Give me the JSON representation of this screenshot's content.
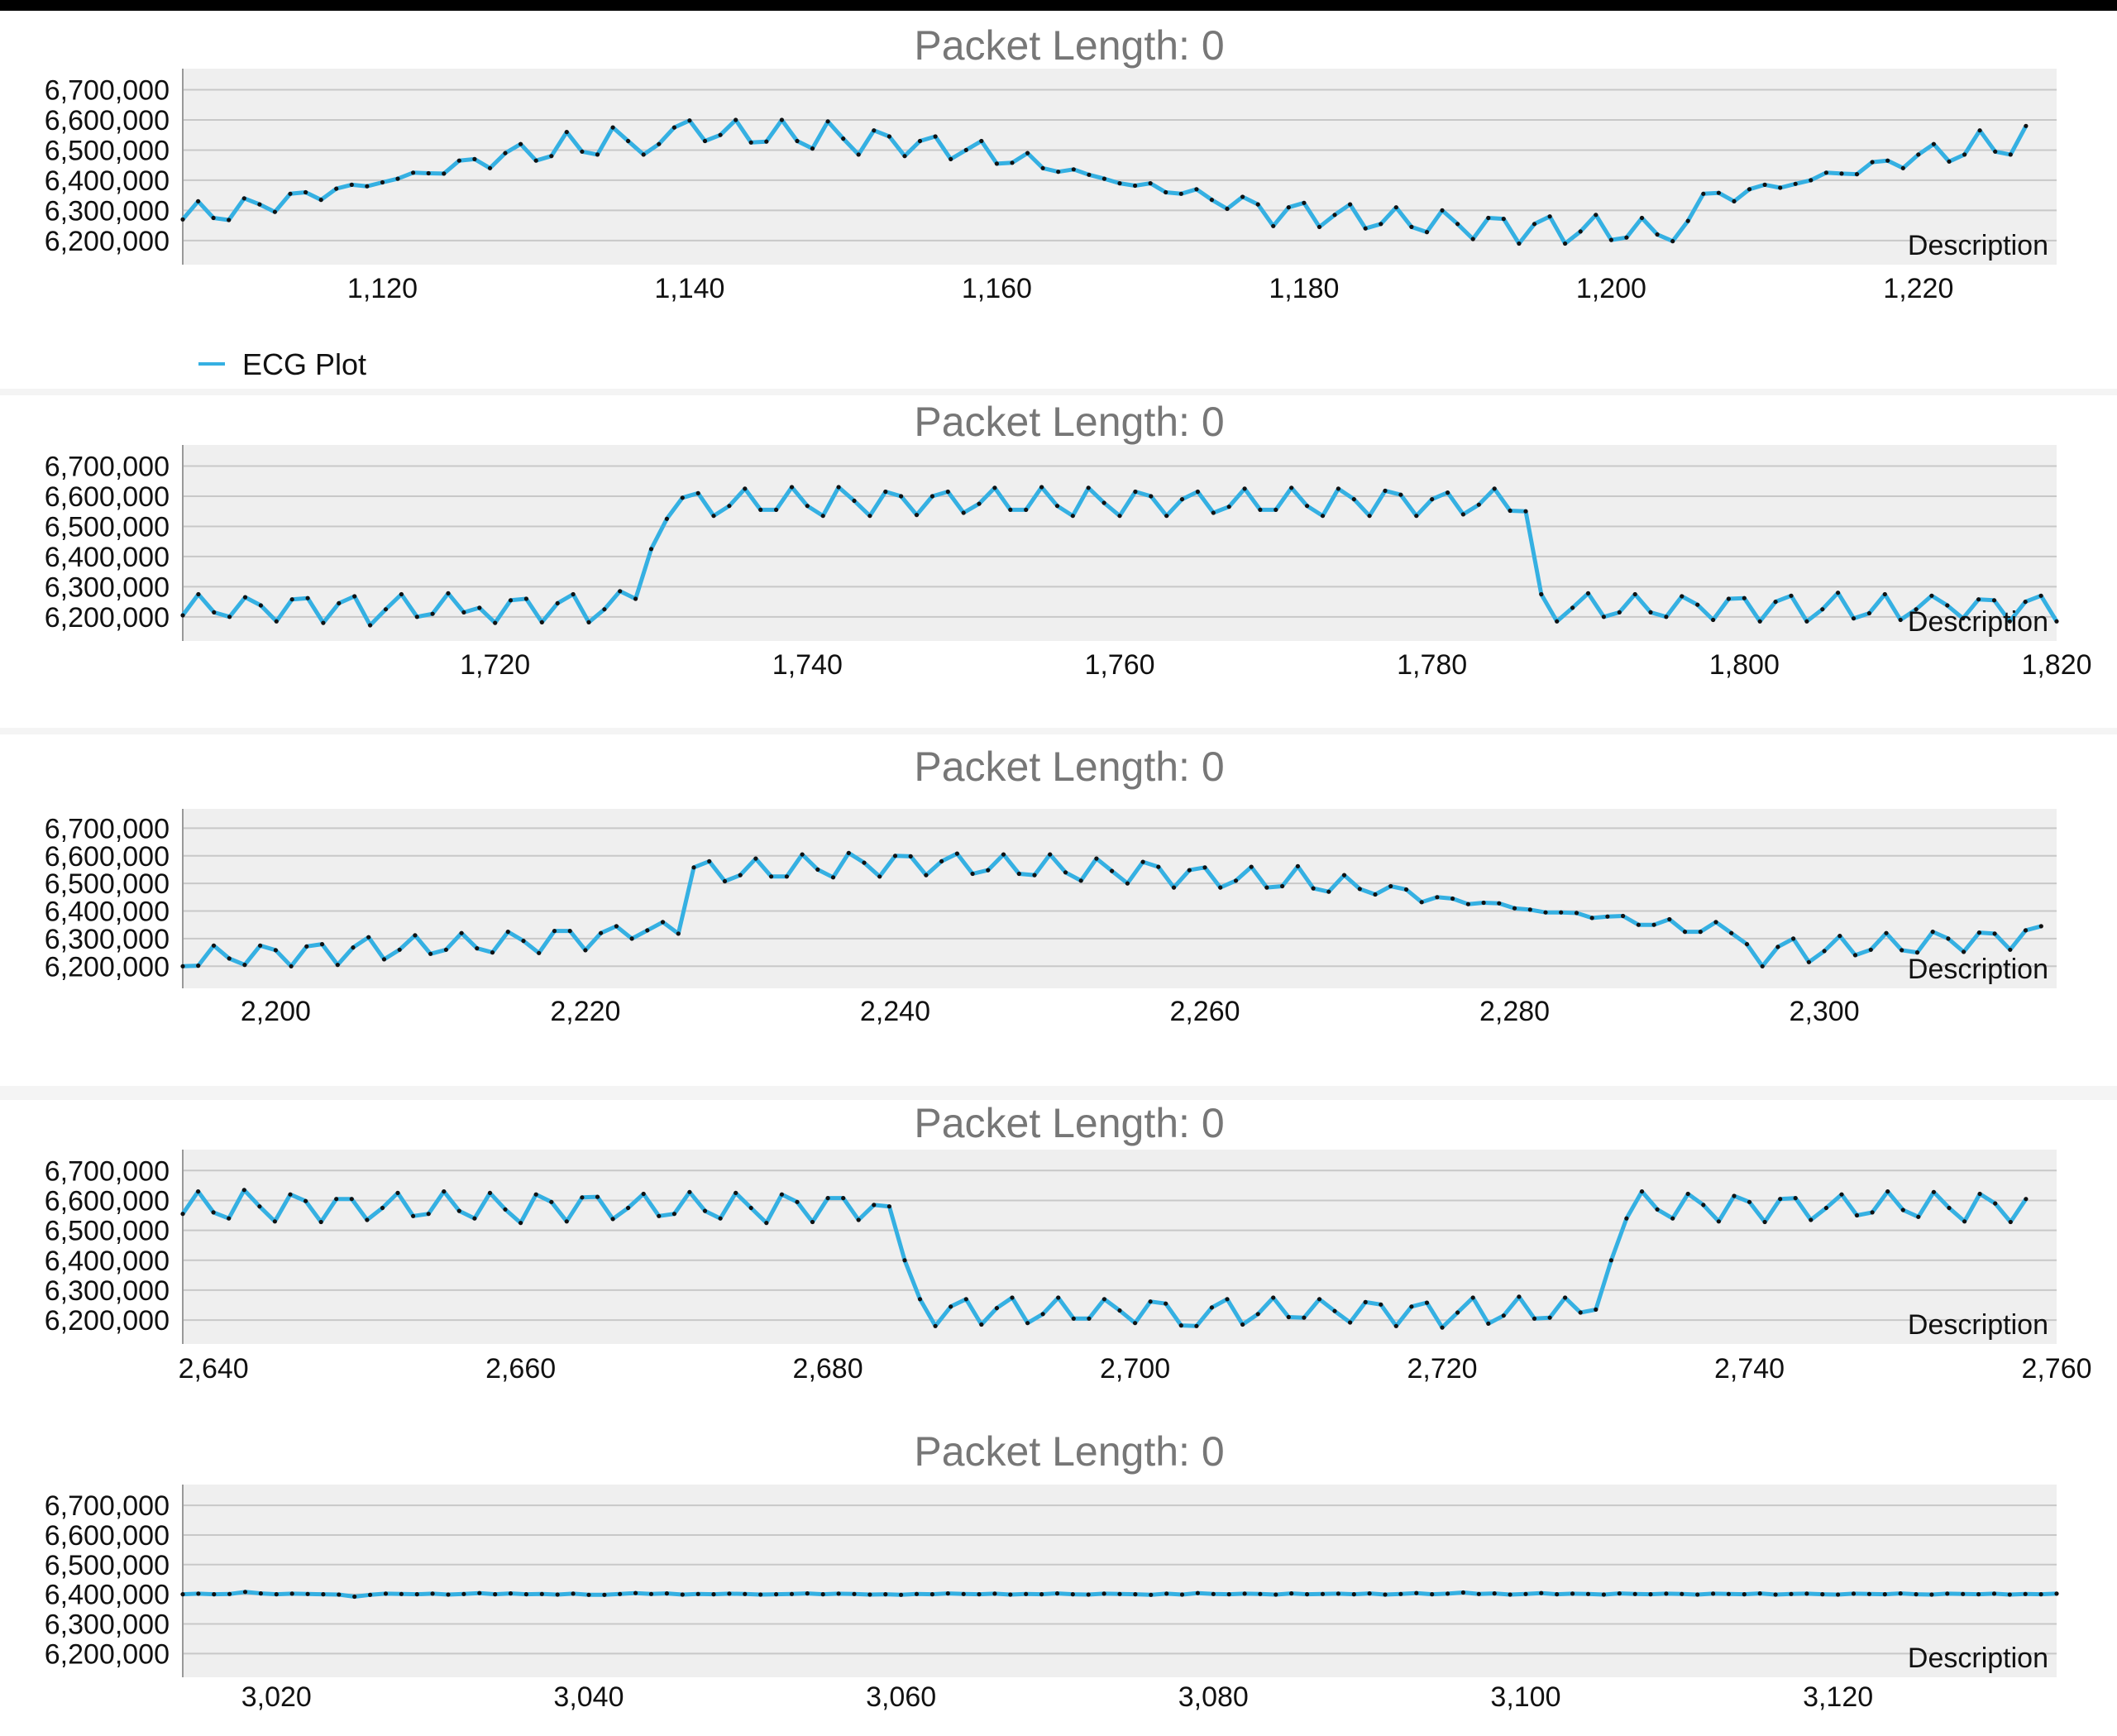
{
  "colors": {
    "series": "#35b0e2",
    "point": "#111111",
    "plot_bg": "#efefef",
    "grid": "#c8c8c8",
    "panel_bg": "#ffffff",
    "title": "#777777"
  },
  "chart_data": [
    {
      "type": "line",
      "title": "Packet Length: 0",
      "description": "Description",
      "legend": {
        "label": "ECG Plot",
        "placement": "bottom-left"
      },
      "xlim": [
        1107,
        1229
      ],
      "ylim": [
        6120000,
        6770000
      ],
      "yticks": [
        6200000,
        6300000,
        6400000,
        6500000,
        6600000,
        6700000
      ],
      "xticks": [
        1120,
        1140,
        1160,
        1180,
        1200,
        1220
      ],
      "series": [
        {
          "name": "ECG Plot",
          "x0": 1107,
          "dx": 1,
          "values": [
            6270000,
            6330000,
            6275000,
            6268000,
            6340000,
            6320000,
            6295000,
            6355000,
            6360000,
            6335000,
            6372000,
            6385000,
            6380000,
            6393000,
            6405000,
            6425000,
            6423000,
            6422000,
            6465000,
            6470000,
            6440000,
            6490000,
            6520000,
            6465000,
            6480000,
            6560000,
            6495000,
            6485000,
            6575000,
            6530000,
            6485000,
            6520000,
            6575000,
            6598000,
            6530000,
            6550000,
            6600000,
            6525000,
            6528000,
            6600000,
            6530000,
            6505000,
            6595000,
            6538000,
            6485000,
            6565000,
            6545000,
            6480000,
            6530000,
            6545000,
            6470000,
            6500000,
            6530000,
            6455000,
            6458000,
            6490000,
            6440000,
            6428000,
            6436000,
            6418000,
            6405000,
            6390000,
            6382000,
            6390000,
            6360000,
            6355000,
            6370000,
            6335000,
            6305000,
            6345000,
            6320000,
            6248000,
            6310000,
            6325000,
            6245000,
            6285000,
            6320000,
            6240000,
            6255000,
            6310000,
            6245000,
            6228000,
            6300000,
            6255000,
            6205000,
            6275000,
            6272000,
            6190000,
            6255000,
            6280000,
            6190000,
            6230000,
            6285000,
            6202000,
            6210000,
            6275000,
            6220000,
            6198000,
            6265000,
            6355000,
            6358000,
            6330000,
            6370000,
            6385000,
            6375000,
            6388000,
            6400000,
            6425000,
            6422000,
            6420000,
            6460000,
            6465000,
            6440000,
            6485000,
            6520000,
            6462000,
            6485000,
            6565000,
            6495000,
            6485000,
            6580000
          ]
        }
      ]
    },
    {
      "type": "line",
      "title": "Packet Length: 0",
      "description": "Description",
      "xlim": [
        1700,
        1820
      ],
      "ylim": [
        6120000,
        6770000
      ],
      "yticks": [
        6200000,
        6300000,
        6400000,
        6500000,
        6600000,
        6700000
      ],
      "xticks": [
        1720,
        1740,
        1760,
        1780,
        1800,
        1820
      ],
      "series": [
        {
          "name": "ECG Plot",
          "x0": 1700,
          "dx": 1,
          "values": [
            6205000,
            6275000,
            6215000,
            6200000,
            6265000,
            6238000,
            6185000,
            6258000,
            6262000,
            6180000,
            6245000,
            6268000,
            6172000,
            6225000,
            6275000,
            6200000,
            6210000,
            6278000,
            6215000,
            6230000,
            6180000,
            6255000,
            6260000,
            6182000,
            6245000,
            6275000,
            6182000,
            6225000,
            6285000,
            6260000,
            6425000,
            6525000,
            6595000,
            6610000,
            6535000,
            6568000,
            6625000,
            6555000,
            6555000,
            6630000,
            6568000,
            6535000,
            6630000,
            6585000,
            6535000,
            6615000,
            6600000,
            6538000,
            6600000,
            6615000,
            6545000,
            6575000,
            6628000,
            6555000,
            6555000,
            6630000,
            6568000,
            6535000,
            6628000,
            6578000,
            6535000,
            6615000,
            6600000,
            6535000,
            6590000,
            6615000,
            6545000,
            6565000,
            6625000,
            6555000,
            6555000,
            6628000,
            6568000,
            6535000,
            6625000,
            6590000,
            6535000,
            6618000,
            6605000,
            6535000,
            6590000,
            6612000,
            6540000,
            6572000,
            6625000,
            6552000,
            6550000,
            6275000,
            6185000,
            6230000,
            6278000,
            6200000,
            6215000,
            6275000,
            6215000,
            6200000,
            6268000,
            6240000,
            6190000,
            6260000,
            6262000,
            6185000,
            6250000,
            6270000,
            6185000,
            6225000,
            6280000,
            6195000,
            6212000,
            6275000,
            6190000,
            6225000,
            6270000,
            6238000,
            6195000,
            6258000,
            6255000,
            6185000,
            6250000,
            6270000,
            6185000
          ]
        }
      ]
    },
    {
      "type": "line",
      "title": "Packet Length: 0",
      "description": "Description",
      "xlim": [
        2194,
        2315
      ],
      "ylim": [
        6120000,
        6770000
      ],
      "yticks": [
        6200000,
        6300000,
        6400000,
        6500000,
        6600000,
        6700000
      ],
      "xticks": [
        2200,
        2220,
        2240,
        2260,
        2280,
        2300
      ],
      "series": [
        {
          "name": "ECG Plot",
          "x0": 2194,
          "dx": 1,
          "values": [
            6200000,
            6202000,
            6275000,
            6228000,
            6205000,
            6275000,
            6258000,
            6200000,
            6272000,
            6280000,
            6205000,
            6268000,
            6305000,
            6225000,
            6260000,
            6312000,
            6245000,
            6260000,
            6320000,
            6265000,
            6250000,
            6325000,
            6292000,
            6248000,
            6328000,
            6328000,
            6258000,
            6320000,
            6345000,
            6300000,
            6330000,
            6360000,
            6318000,
            6558000,
            6580000,
            6508000,
            6530000,
            6590000,
            6525000,
            6525000,
            6605000,
            6550000,
            6522000,
            6610000,
            6575000,
            6525000,
            6600000,
            6598000,
            6530000,
            6580000,
            6608000,
            6535000,
            6548000,
            6605000,
            6535000,
            6530000,
            6605000,
            6540000,
            6510000,
            6590000,
            6545000,
            6500000,
            6578000,
            6560000,
            6485000,
            6548000,
            6558000,
            6485000,
            6510000,
            6560000,
            6485000,
            6490000,
            6562000,
            6482000,
            6470000,
            6530000,
            6480000,
            6460000,
            6490000,
            6478000,
            6432000,
            6450000,
            6445000,
            6425000,
            6430000,
            6428000,
            6410000,
            6405000,
            6395000,
            6395000,
            6393000,
            6375000,
            6380000,
            6382000,
            6350000,
            6350000,
            6370000,
            6325000,
            6325000,
            6360000,
            6320000,
            6280000,
            6200000,
            6270000,
            6300000,
            6215000,
            6255000,
            6310000,
            6240000,
            6260000,
            6320000,
            6258000,
            6250000,
            6325000,
            6300000,
            6252000,
            6322000,
            6318000,
            6260000,
            6330000,
            6345000
          ]
        }
      ]
    },
    {
      "type": "line",
      "title": "Packet Length: 0",
      "description": "Description",
      "xlim": [
        2638,
        2760
      ],
      "ylim": [
        6120000,
        6770000
      ],
      "yticks": [
        6200000,
        6300000,
        6400000,
        6500000,
        6600000,
        6700000
      ],
      "xticks": [
        2640,
        2660,
        2680,
        2700,
        2720,
        2740,
        2760
      ],
      "series": [
        {
          "name": "ECG Plot",
          "x0": 2638,
          "dx": 1,
          "values": [
            6555000,
            6630000,
            6560000,
            6540000,
            6635000,
            6580000,
            6530000,
            6620000,
            6598000,
            6528000,
            6605000,
            6605000,
            6535000,
            6575000,
            6625000,
            6548000,
            6555000,
            6630000,
            6565000,
            6540000,
            6625000,
            6570000,
            6525000,
            6620000,
            6595000,
            6530000,
            6610000,
            6612000,
            6538000,
            6575000,
            6622000,
            6548000,
            6555000,
            6628000,
            6565000,
            6540000,
            6625000,
            6575000,
            6525000,
            6620000,
            6595000,
            6528000,
            6608000,
            6608000,
            6535000,
            6585000,
            6580000,
            6400000,
            6270000,
            6180000,
            6245000,
            6270000,
            6185000,
            6240000,
            6275000,
            6190000,
            6220000,
            6275000,
            6205000,
            6205000,
            6270000,
            6232000,
            6190000,
            6262000,
            6255000,
            6182000,
            6180000,
            6242000,
            6270000,
            6185000,
            6220000,
            6275000,
            6210000,
            6208000,
            6270000,
            6230000,
            6192000,
            6260000,
            6252000,
            6180000,
            6245000,
            6258000,
            6175000,
            6225000,
            6275000,
            6188000,
            6215000,
            6278000,
            6205000,
            6208000,
            6275000,
            6225000,
            6235000,
            6400000,
            6540000,
            6630000,
            6570000,
            6540000,
            6622000,
            6585000,
            6530000,
            6615000,
            6595000,
            6528000,
            6605000,
            6608000,
            6535000,
            6575000,
            6620000,
            6550000,
            6560000,
            6630000,
            6568000,
            6545000,
            6628000,
            6575000,
            6530000,
            6622000,
            6590000,
            6528000,
            6605000
          ]
        }
      ]
    },
    {
      "type": "line",
      "title": "Packet Length: 0",
      "description": "Description",
      "xlim": [
        3014,
        3134
      ],
      "ylim": [
        6120000,
        6770000
      ],
      "yticks": [
        6200000,
        6300000,
        6400000,
        6500000,
        6600000,
        6700000
      ],
      "xticks": [
        3020,
        3040,
        3060,
        3080,
        3100,
        3120
      ],
      "series": [
        {
          "name": "ECG Plot",
          "x0": 3014,
          "dx": 1,
          "values": [
            6400000,
            6402000,
            6400000,
            6401000,
            6408000,
            6403000,
            6400000,
            6402000,
            6401000,
            6400000,
            6399000,
            6392000,
            6398000,
            6402000,
            6401000,
            6400000,
            6402000,
            6399000,
            6401000,
            6404000,
            6400000,
            6403000,
            6400000,
            6401000,
            6399000,
            6402000,
            6398000,
            6398000,
            6401000,
            6404000,
            6401000,
            6403000,
            6399000,
            6401000,
            6400000,
            6402000,
            6401000,
            6399000,
            6400000,
            6401000,
            6403000,
            6400000,
            6402000,
            6401000,
            6399000,
            6400000,
            6398000,
            6401000,
            6400000,
            6403000,
            6401000,
            6400000,
            6402000,
            6399000,
            6401000,
            6400000,
            6403000,
            6400000,
            6399000,
            6402000,
            6401000,
            6400000,
            6398000,
            6402000,
            6399000,
            6404000,
            6401000,
            6400000,
            6402000,
            6401000,
            6399000,
            6403000,
            6400000,
            6401000,
            6402000,
            6400000,
            6403000,
            6399000,
            6401000,
            6404000,
            6400000,
            6402000,
            6406000,
            6401000,
            6403000,
            6399000,
            6401000,
            6404000,
            6400000,
            6402000,
            6401000,
            6399000,
            6403000,
            6401000,
            6400000,
            6402000,
            6401000,
            6399000,
            6402000,
            6401000,
            6400000,
            6403000,
            6399000,
            6401000,
            6402000,
            6400000,
            6399000,
            6402000,
            6401000,
            6400000,
            6403000,
            6400000,
            6399000,
            6402000,
            6401000,
            6400000,
            6402000,
            6399000,
            6401000,
            6400000,
            6402000
          ]
        }
      ]
    }
  ]
}
